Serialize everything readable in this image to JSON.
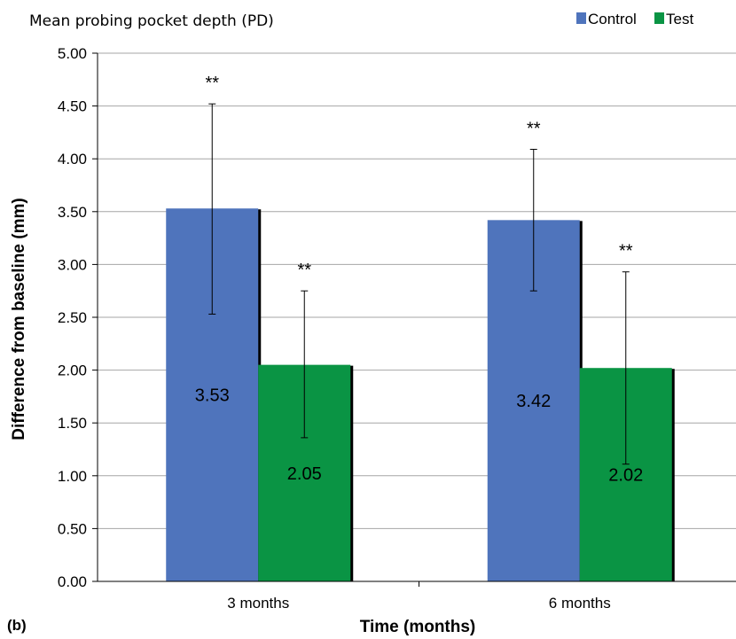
{
  "chart_data": {
    "type": "bar",
    "title": "Mean probing pocket depth (PD)",
    "panel_label": "(b)",
    "xlabel": "Time (months)",
    "ylabel": "Difference from baseline (mm)",
    "categories": [
      "3 months",
      "6 months"
    ],
    "series": [
      {
        "name": "Control",
        "color": "#4F74BC",
        "values": [
          3.53,
          3.42
        ],
        "value_labels": [
          "3.53",
          "3.42"
        ],
        "error": [
          [
            2.53,
            4.52
          ],
          [
            2.75,
            4.09
          ]
        ],
        "significance": [
          "**",
          "**"
        ]
      },
      {
        "name": "Test",
        "color": "#0A9444",
        "values": [
          2.05,
          2.02
        ],
        "value_labels": [
          "2.05",
          "2.02"
        ],
        "error": [
          [
            1.36,
            2.75
          ],
          [
            1.11,
            2.93
          ]
        ],
        "significance": [
          "**",
          "**"
        ]
      }
    ],
    "ylim": [
      0,
      5
    ],
    "yticks": [
      "0.00",
      "0.50",
      "1.00",
      "1.50",
      "2.00",
      "2.50",
      "3.00",
      "3.50",
      "4.00",
      "4.50",
      "5.00"
    ],
    "grid": true,
    "legend_position": "top-right"
  }
}
